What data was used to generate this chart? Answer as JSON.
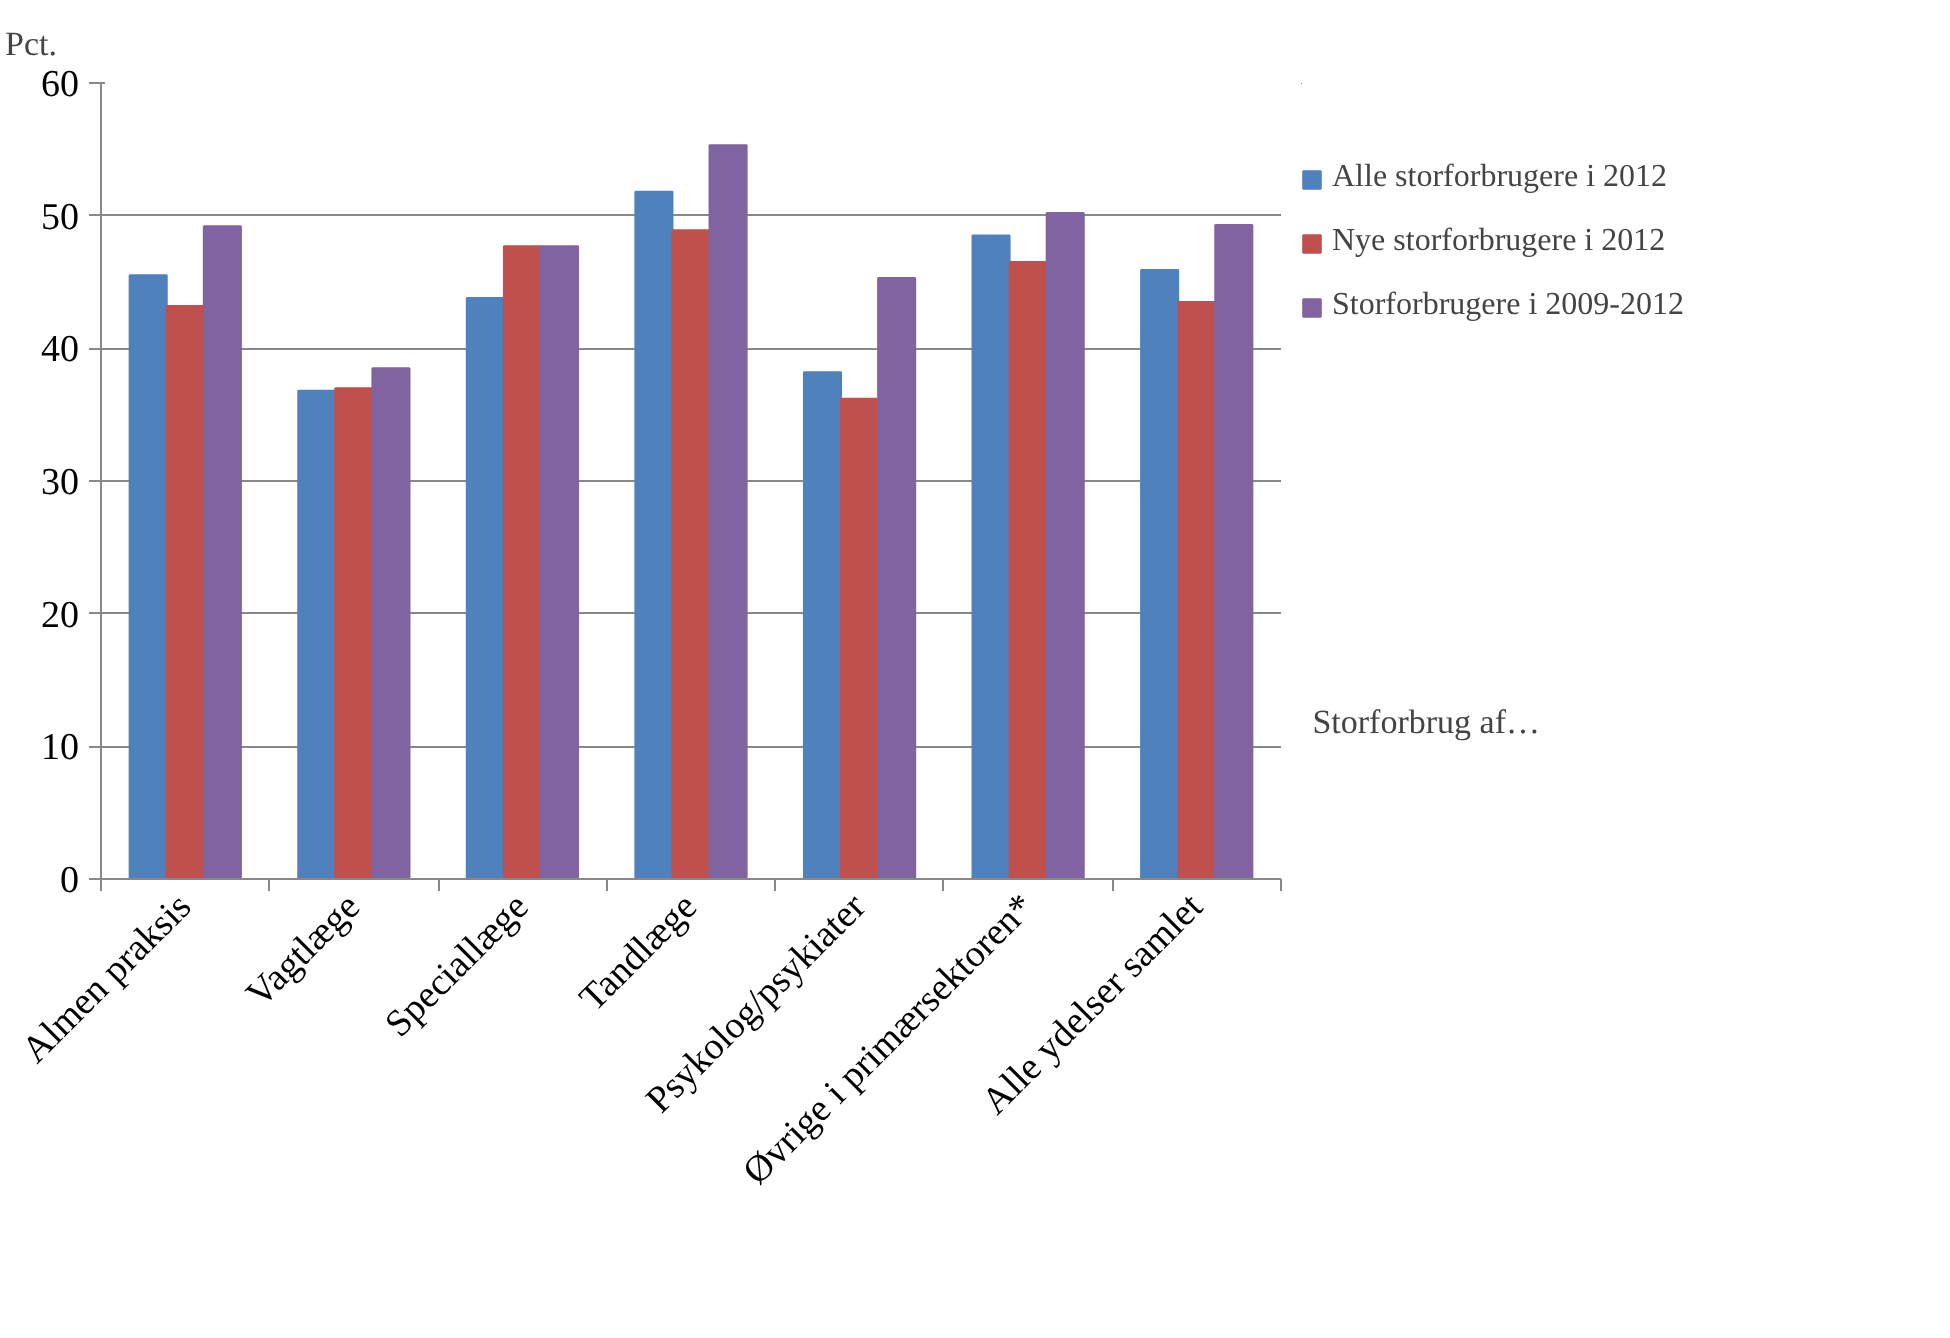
{
  "chart_data": {
    "type": "bar",
    "ylabel": "Pct.",
    "xlabel": "Storforbrug af…",
    "categories": [
      "Almen praksis",
      "Vagtlæge",
      "Speciallæge",
      "Tandlæge",
      "Psykolog/psykiater",
      "Øvrige i primærsektoren*",
      "Alle ydelser samlet"
    ],
    "series": [
      {
        "name": "Alle storforbrugere i 2012",
        "color": "#4f81bd",
        "values": [
          45.5,
          36.8,
          43.8,
          51.8,
          38.2,
          48.5,
          45.9
        ]
      },
      {
        "name": "Nye storforbrugere i 2012",
        "color": "#c0504d",
        "values": [
          43.2,
          37.0,
          47.7,
          48.9,
          36.2,
          46.5,
          43.5
        ]
      },
      {
        "name": "Storforbrugere i 2009-2012",
        "color": "#8064a2",
        "values": [
          49.2,
          38.5,
          47.7,
          55.3,
          45.3,
          50.2,
          49.3
        ]
      }
    ],
    "ylim": [
      0,
      60
    ],
    "yticks": [
      0,
      10,
      20,
      30,
      40,
      50,
      60
    ],
    "grid": "y",
    "legend": "right"
  }
}
